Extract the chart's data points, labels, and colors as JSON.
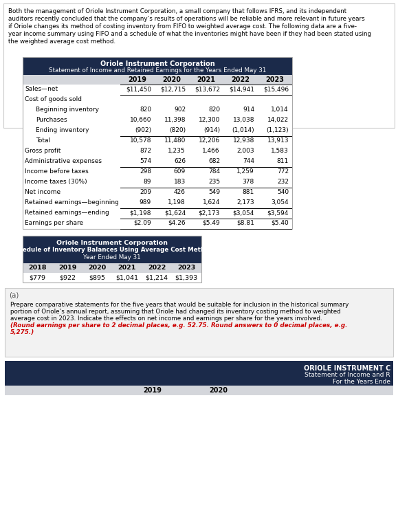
{
  "intro_text_lines": [
    "Both the management of Oriole Instrument Corporation, a small company that follows IFRS, and its independent",
    "auditors recently concluded that the company’s results of operations will be reliable and more relevant in future years",
    "if Oriole changes its method of costing inventory from FIFO to weighted average cost. The following data are a five-",
    "year income summary using FIFO and a schedule of what the inventories might have been if they had been stated using",
    "the weighted average cost method."
  ],
  "table1_title1": "Oriole Instrument Corporation",
  "table1_title2": "Statement of Income and Retained Earnings for the Years Ended May 31",
  "table1_years": [
    "2019",
    "2020",
    "2021",
    "2022",
    "2023"
  ],
  "table1_rows": [
    {
      "label": "Sales—net",
      "values": [
        "$11,450",
        "$12,715",
        "$13,672",
        "$14,941",
        "$15,496"
      ],
      "indent": 0,
      "underline_above": true,
      "underline_below": true,
      "double_below": false
    },
    {
      "label": "Cost of goods sold",
      "values": [
        "",
        "",
        "",
        "",
        ""
      ],
      "indent": 0,
      "underline_above": false,
      "underline_below": false,
      "double_below": false
    },
    {
      "label": "Beginning inventory",
      "values": [
        "820",
        "902",
        "820",
        "914",
        "1,014"
      ],
      "indent": 1,
      "underline_above": false,
      "underline_below": false,
      "double_below": false
    },
    {
      "label": "Purchases",
      "values": [
        "10,660",
        "11,398",
        "12,300",
        "13,038",
        "14,022"
      ],
      "indent": 1,
      "underline_above": false,
      "underline_below": false,
      "double_below": false
    },
    {
      "label": "Ending inventory",
      "values": [
        "(902)",
        "(820)",
        "(914)",
        "(1,014)",
        "(1,123)"
      ],
      "indent": 1,
      "underline_above": false,
      "underline_below": false,
      "double_below": false
    },
    {
      "label": "Total",
      "values": [
        "10,578",
        "11,480",
        "12,206",
        "12,938",
        "13,913"
      ],
      "indent": 1,
      "underline_above": true,
      "underline_below": false,
      "double_below": false
    },
    {
      "label": "Gross profit",
      "values": [
        "872",
        "1,235",
        "1,466",
        "2,003",
        "1,583"
      ],
      "indent": 0,
      "underline_above": false,
      "underline_below": false,
      "double_below": false
    },
    {
      "label": "Administrative expenses",
      "values": [
        "574",
        "626",
        "682",
        "744",
        "811"
      ],
      "indent": 0,
      "underline_above": false,
      "underline_below": false,
      "double_below": false
    },
    {
      "label": "Income before taxes",
      "values": [
        "298",
        "609",
        "784",
        "1,259",
        "772"
      ],
      "indent": 0,
      "underline_above": true,
      "underline_below": false,
      "double_below": false
    },
    {
      "label": "Income taxes (30%)",
      "values": [
        "89",
        "183",
        "235",
        "378",
        "232"
      ],
      "indent": 0,
      "underline_above": false,
      "underline_below": false,
      "double_below": false
    },
    {
      "label": "Net income",
      "values": [
        "209",
        "426",
        "549",
        "881",
        "540"
      ],
      "indent": 0,
      "underline_above": true,
      "underline_below": false,
      "double_below": false
    },
    {
      "label": "Retained earnings—beginning",
      "values": [
        "989",
        "1,198",
        "1,624",
        "2,173",
        "3,054"
      ],
      "indent": 0,
      "underline_above": false,
      "underline_below": false,
      "double_below": false
    },
    {
      "label": "Retained earnings—ending",
      "values": [
        "$1,198",
        "$1,624",
        "$2,173",
        "$3,054",
        "$3,594"
      ],
      "indent": 0,
      "underline_above": true,
      "underline_below": true,
      "double_below": false
    },
    {
      "label": "Earnings per share",
      "values": [
        "$2.09",
        "$4.26",
        "$5.49",
        "$8.81",
        "$5.40"
      ],
      "indent": 0,
      "underline_above": false,
      "underline_below": true,
      "double_below": false
    }
  ],
  "table2_title1": "Oriole Instrument Corporation",
  "table2_title2": "Schedule of Inventory Balances Using Average Cost Method",
  "table2_title3": "Year Ended May 31",
  "table2_years": [
    "2018",
    "2019",
    "2020",
    "2021",
    "2022",
    "2023"
  ],
  "table2_values": [
    "$779",
    "$922",
    "$895",
    "$1,041",
    "$1,214",
    "$1,393"
  ],
  "section_a_label": "(a)",
  "section_a_text_lines": [
    "Prepare comparative statements for the five years that would be suitable for inclusion in the historical summary",
    "portion of Oriole’s annual report, assuming that Oriole had changed its inventory costing method to weighted",
    "average cost in 2023. Indicate the effects on net income and earnings per share for the years involved."
  ],
  "section_a_italic_lines": [
    "(Round earnings per share to 2 decimal places, e.g. 52.75. Round answers to 0 decimal places, e.g.",
    "5,275.)"
  ],
  "table3_title1": "ORIOLE INSTRUMENT C",
  "table3_title2": "Statement of Income and R",
  "table3_title3": "For the Years Ende",
  "table3_years_visible": [
    "2019",
    "2020"
  ],
  "header_bg": "#1b2a4a",
  "col_header_bg": "#d4d6db",
  "section_a_bg": "#f2f2f2",
  "table3_col_bg": "#d4d6db"
}
